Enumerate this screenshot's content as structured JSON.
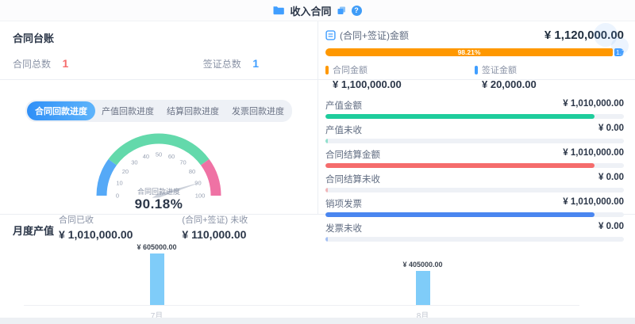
{
  "header": {
    "title": "收入合同",
    "help_glyph": "?"
  },
  "ledger": {
    "title": "合同台账",
    "contract_total_label": "合同总数",
    "contract_total_value": "1",
    "visa_total_label": "签证总数",
    "visa_total_value": "1"
  },
  "tabs": [
    {
      "label": "合同回款进度",
      "active": true
    },
    {
      "label": "产值回款进度",
      "active": false
    },
    {
      "label": "结算回款进度",
      "active": false
    },
    {
      "label": "发票回款进度",
      "active": false
    }
  ],
  "gauge": {
    "label": "合同回款进度",
    "value": 90.18,
    "value_text": "90.18%",
    "min": 0,
    "max": 100,
    "ticks": [
      0,
      10,
      20,
      30,
      40,
      50,
      60,
      70,
      80,
      90,
      100
    ],
    "segments": [
      {
        "from": 0,
        "to": 20,
        "color": "#55a9f7"
      },
      {
        "from": 20,
        "to": 80,
        "color": "#63d9ab"
      },
      {
        "from": 80,
        "to": 100,
        "color": "#ef72a4"
      }
    ]
  },
  "received": {
    "label": "合同已收",
    "value": "¥ 1,010,000.00"
  },
  "unreceived": {
    "label": "(合同+签证) 未收",
    "value": "¥ 110,000.00"
  },
  "summary": {
    "title": "(合同+签证)金额",
    "total": "¥ 1,120,000.00",
    "bar": {
      "main_percent": 98.21,
      "main_percent_text": "98.21%",
      "tail_percent_text": "1.79%",
      "main_color": "#ff9800",
      "tail_color": "#409eff"
    },
    "legend": [
      {
        "label": "合同金额",
        "value": "¥ 1,100,000.00",
        "color": "#ff9800"
      },
      {
        "label": "签证金额",
        "value": "¥ 20,000.00",
        "color": "#409eff"
      }
    ]
  },
  "stats": {
    "total_value": 1120000,
    "rows": [
      {
        "label": "产值金额",
        "amount": "¥ 1,010,000.00",
        "value": 1010000,
        "color": "#1ecd9c"
      },
      {
        "label": "产值未收",
        "amount": "¥ 0.00",
        "value": 0,
        "color": "#1ecd9c"
      },
      {
        "label": "合同结算金额",
        "amount": "¥ 1,010,000.00",
        "value": 1010000,
        "color": "#f56c6c"
      },
      {
        "label": "合同结算未收",
        "amount": "¥ 0.00",
        "value": 0,
        "color": "#f56c6c"
      },
      {
        "label": "销项发票",
        "amount": "¥ 1,010,000.00",
        "value": 1010000,
        "color": "#4a86f0"
      },
      {
        "label": "发票未收",
        "amount": "¥ 0.00",
        "value": 0,
        "color": "#4a86f0"
      }
    ]
  },
  "monthly": {
    "title": "月度产值",
    "bar_color": "#7fccf9",
    "ymax": 700000,
    "bars": [
      {
        "month": "7月",
        "label": "¥ 605000.00",
        "value": 605000
      },
      {
        "month": "8月",
        "label": "¥ 405000.00",
        "value": 405000
      }
    ]
  },
  "chart_data": [
    {
      "type": "gauge",
      "title": "合同回款进度",
      "value": 90.18,
      "unit": "%",
      "min": 0,
      "max": 100,
      "tick_interval": 10,
      "segments": [
        {
          "from": 0,
          "to": 20,
          "color": "#55a9f7"
        },
        {
          "from": 20,
          "to": 80,
          "color": "#63d9ab"
        },
        {
          "from": 80,
          "to": 100,
          "color": "#ef72a4"
        }
      ]
    },
    {
      "type": "bar",
      "title": "月度产值",
      "categories": [
        "7月",
        "8月"
      ],
      "values": [
        605000,
        405000
      ],
      "data_labels": [
        "¥ 605000.00",
        "¥ 405000.00"
      ],
      "bar_color": "#7fccf9",
      "ylim": [
        0,
        700000
      ],
      "grid": false,
      "legend": false
    },
    {
      "type": "bar",
      "title": "(合同+签证)金额",
      "subtype": "stacked-horizontal",
      "series": [
        {
          "name": "合同金额",
          "value": 1100000,
          "percent_label": "98.21%",
          "color": "#ff9800"
        },
        {
          "name": "签证金额",
          "value": 20000,
          "color": "#409eff"
        }
      ],
      "total": 1120000
    }
  ]
}
